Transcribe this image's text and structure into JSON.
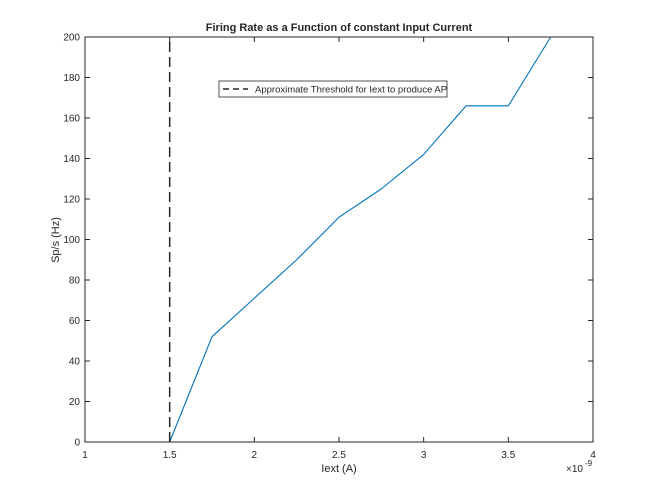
{
  "chart_data": {
    "type": "line",
    "title": "Firing Rate as a Function of constant Input Current",
    "xlabel": "Iext (A)",
    "ylabel": "Sp/s (Hz)",
    "x_exponent": "-9",
    "xlim": [
      1,
      4
    ],
    "ylim": [
      0,
      200
    ],
    "x_ticks": [
      1,
      1.5,
      2,
      2.5,
      3,
      3.5,
      4
    ],
    "y_ticks": [
      0,
      20,
      40,
      60,
      80,
      100,
      120,
      140,
      160,
      180,
      200
    ],
    "grid": false,
    "legend_placement": "upper-center",
    "series": [
      {
        "style": "solid",
        "color": "#0072BD",
        "x": [
          1,
          1.25,
          1.5,
          1.75,
          2,
          2.25,
          2.5,
          2.75,
          3,
          3.25,
          3.5,
          3.75,
          4
        ],
        "y": [
          0,
          0,
          0,
          52,
          71,
          90,
          111,
          125,
          142,
          166,
          166,
          200,
          200
        ]
      },
      {
        "name": "Approximate Threshold for Iext to produce AP",
        "style": "dashed",
        "color": "#262626",
        "x": [
          1.5,
          1.5
        ],
        "y": [
          0,
          200
        ]
      }
    ]
  }
}
